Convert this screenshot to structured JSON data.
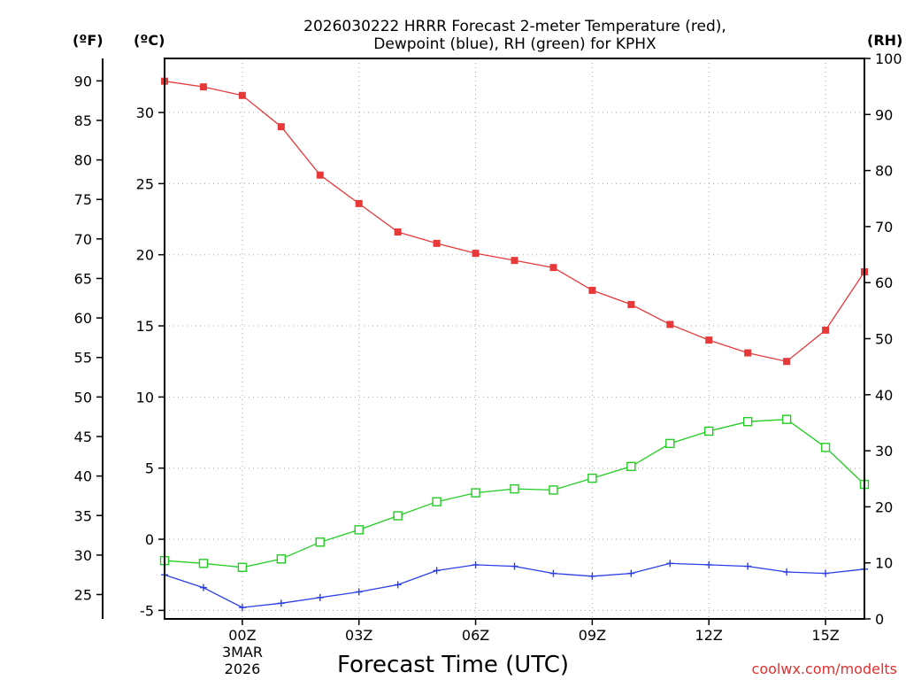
{
  "chart_data": {
    "type": "line",
    "title_line1": "2026030222 HRRR Forecast 2-meter Temperature (red),",
    "title_line2": "Dewpoint (blue), RH (green) for KPHX",
    "xlabel": "Forecast Time (UTC)",
    "credit": "coolwx.com/modelts",
    "units": {
      "f": "(ºF)",
      "c": "(ºC)",
      "rh": "(RH)"
    },
    "x": [
      -1,
      0,
      1,
      2,
      3,
      4,
      5,
      6,
      7,
      8,
      9,
      10,
      11,
      12,
      13,
      14,
      15,
      16,
      17
    ],
    "x_ticks": [
      {
        "x": 1,
        "label": "00Z"
      },
      {
        "x": 4,
        "label": "03Z"
      },
      {
        "x": 7,
        "label": "06Z"
      },
      {
        "x": 10,
        "label": "09Z"
      },
      {
        "x": 13,
        "label": "12Z"
      },
      {
        "x": 16,
        "label": "15Z"
      }
    ],
    "date_label_line1": "3MAR",
    "date_label_line2": "2026",
    "xlim": [
      -1,
      17
    ],
    "y_left_c": {
      "range": [
        -5.6,
        33.8
      ],
      "ticks": [
        "-5",
        "0",
        "5",
        "10",
        "15",
        "20",
        "25",
        "30"
      ]
    },
    "y_left_f": {
      "ticks": [
        "25",
        "30",
        "35",
        "40",
        "45",
        "50",
        "55",
        "60",
        "65",
        "70",
        "75",
        "80",
        "85",
        "90"
      ]
    },
    "y_right_rh": {
      "range": [
        0,
        100
      ],
      "ticks": [
        "0",
        "10",
        "20",
        "30",
        "40",
        "50",
        "60",
        "70",
        "80",
        "90",
        "100"
      ]
    },
    "series": [
      {
        "name": "Temperature",
        "axis": "celsius",
        "color": "#e63a3a",
        "marker": "filled-square",
        "values": [
          32.2,
          31.8,
          31.2,
          29.0,
          25.6,
          23.6,
          21.6,
          20.8,
          20.1,
          19.6,
          19.1,
          17.5,
          16.5,
          15.1,
          14.0,
          13.1,
          12.5,
          14.7,
          18.8
        ]
      },
      {
        "name": "Dewpoint",
        "axis": "celsius",
        "color": "#2a3ee6",
        "marker": "plus",
        "values": [
          -2.5,
          -3.4,
          -4.8,
          -4.5,
          -4.1,
          -3.7,
          -3.2,
          -2.2,
          -1.8,
          -1.9,
          -2.4,
          -2.6,
          -2.4,
          -1.7,
          -1.8,
          -1.9,
          -2.3,
          -2.4,
          -2.1
        ]
      },
      {
        "name": "RH",
        "axis": "rh",
        "color": "#22cc22",
        "marker": "open-square",
        "values": [
          10.4,
          9.9,
          9.2,
          10.7,
          13.7,
          15.9,
          18.4,
          20.9,
          22.5,
          23.2,
          23.0,
          25.1,
          27.2,
          31.3,
          33.5,
          35.2,
          35.6,
          30.6,
          24.0
        ]
      }
    ]
  }
}
